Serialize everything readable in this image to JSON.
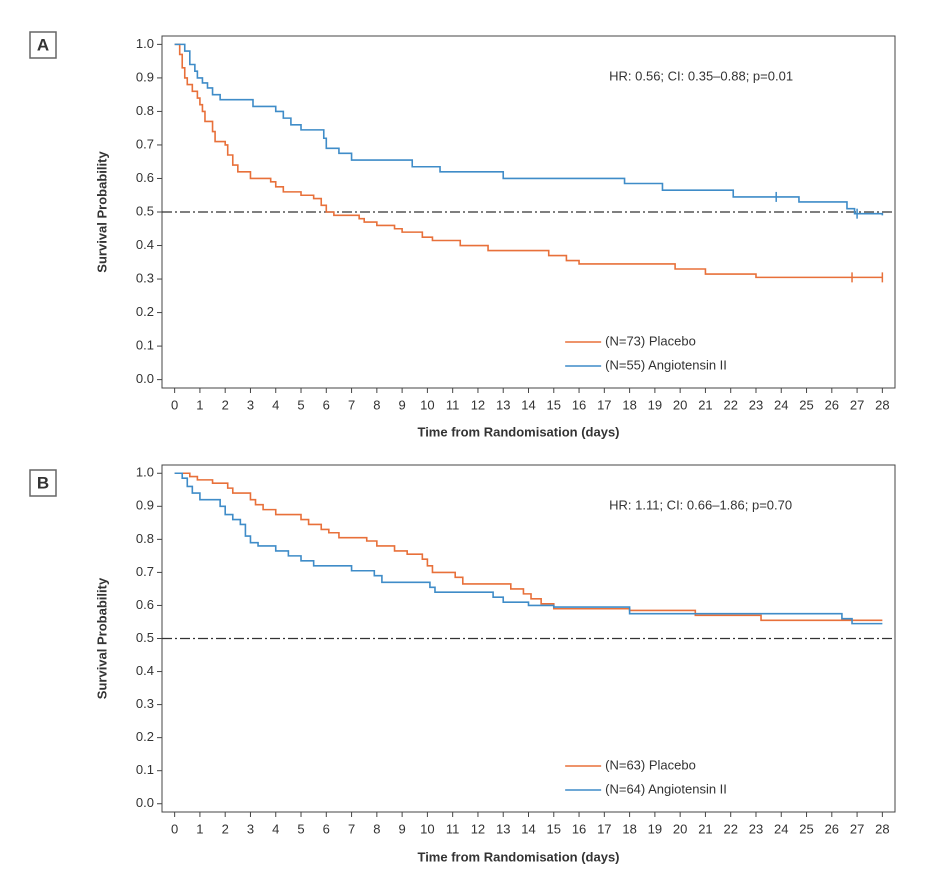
{
  "chart_data": [
    {
      "type": "step",
      "panel_label": "A",
      "annotation": "HR: 0.56; CI: 0.35–0.88; p=0.01",
      "x_label": "Time from Randomisation (days)",
      "y_label": "Survival Probability",
      "xlim": [
        -0.5,
        28.5
      ],
      "ylim": [
        -0.025,
        1.025
      ],
      "xticks": [
        0,
        1,
        2,
        3,
        4,
        5,
        6,
        7,
        8,
        9,
        10,
        11,
        12,
        13,
        14,
        15,
        16,
        17,
        18,
        19,
        20,
        21,
        22,
        23,
        24,
        25,
        26,
        27,
        28
      ],
      "yticks": [
        {
          "value": 0,
          "label": "0.0"
        },
        0.1,
        0.2,
        0.3,
        0.4,
        0.5,
        0.6,
        0.7,
        0.8,
        0.9,
        {
          "value": 1,
          "label": "1.0"
        }
      ],
      "reference_line": 0.5,
      "legend": "lower center",
      "series": [
        {
          "name": "(N=73) Placebo",
          "color": "#e8703a",
          "x": [
            0,
            0.2,
            0.3,
            0.4,
            0.5,
            0.7,
            0.9,
            1.0,
            1.1,
            1.2,
            1.5,
            1.6,
            2.0,
            2.1,
            2.3,
            2.5,
            3.0,
            3.8,
            4.0,
            4.3,
            5.0,
            5.5,
            5.8,
            6.0,
            6.3,
            7.3,
            7.5,
            8.0,
            8.7,
            9.0,
            9.8,
            10.2,
            11.3,
            12.4,
            14.8,
            15.5,
            16.0,
            19.8,
            21.0,
            23.0,
            28
          ],
          "values": [
            1.0,
            0.97,
            0.93,
            0.9,
            0.88,
            0.86,
            0.84,
            0.82,
            0.8,
            0.77,
            0.74,
            0.71,
            0.7,
            0.67,
            0.64,
            0.62,
            0.6,
            0.59,
            0.575,
            0.56,
            0.55,
            0.54,
            0.52,
            0.5,
            0.49,
            0.48,
            0.47,
            0.46,
            0.45,
            0.44,
            0.425,
            0.415,
            0.4,
            0.385,
            0.37,
            0.355,
            0.345,
            0.33,
            0.315,
            0.305,
            0.305
          ],
          "censored_x": [
            26.8,
            28
          ]
        },
        {
          "name": "(N=55) Angiotensin II",
          "color": "#3f8cc8",
          "x": [
            0,
            0.4,
            0.6,
            0.8,
            0.9,
            1.1,
            1.3,
            1.5,
            1.8,
            3.1,
            4.0,
            4.3,
            4.6,
            5.0,
            5.9,
            6.0,
            6.5,
            7.0,
            9.4,
            10.5,
            13.0,
            17.8,
            19.3,
            22.1,
            24.7,
            26.6,
            26.9,
            28
          ],
          "values": [
            1.0,
            0.98,
            0.94,
            0.92,
            0.9,
            0.885,
            0.87,
            0.85,
            0.835,
            0.815,
            0.8,
            0.78,
            0.76,
            0.745,
            0.72,
            0.69,
            0.675,
            0.655,
            0.635,
            0.62,
            0.6,
            0.585,
            0.565,
            0.545,
            0.53,
            0.51,
            0.495,
            0.49
          ],
          "censored_x": [
            23.8,
            27.0
          ]
        }
      ]
    },
    {
      "type": "step",
      "panel_label": "B",
      "annotation": "HR: 1.11; CI: 0.66–1.86; p=0.70",
      "x_label": "Time from Randomisation (days)",
      "y_label": "Survival Probability",
      "xlim": [
        -0.5,
        28.5
      ],
      "ylim": [
        -0.025,
        1.025
      ],
      "xticks": [
        0,
        1,
        2,
        3,
        4,
        5,
        6,
        7,
        8,
        9,
        10,
        11,
        12,
        13,
        14,
        15,
        16,
        17,
        18,
        19,
        20,
        21,
        22,
        23,
        24,
        25,
        26,
        27,
        28
      ],
      "yticks": [
        {
          "value": 0,
          "label": "0.0"
        },
        0.1,
        0.2,
        0.3,
        0.4,
        0.5,
        0.6,
        0.7,
        0.8,
        0.9,
        {
          "value": 1,
          "label": "1.0"
        }
      ],
      "reference_line": 0.5,
      "legend": "lower center",
      "series": [
        {
          "name": "(N=63) Placebo",
          "color": "#e8703a",
          "x": [
            0,
            0.6,
            0.9,
            1.5,
            2.1,
            2.3,
            3.0,
            3.2,
            3.5,
            4.0,
            5.0,
            5.3,
            5.8,
            6.1,
            6.5,
            7.6,
            8.0,
            8.7,
            9.2,
            9.8,
            10.0,
            10.2,
            11.1,
            11.4,
            13.3,
            13.8,
            14.1,
            14.5,
            15.0,
            18.0,
            20.6,
            23.2,
            28
          ],
          "values": [
            1.0,
            0.99,
            0.98,
            0.97,
            0.955,
            0.94,
            0.92,
            0.905,
            0.89,
            0.875,
            0.86,
            0.845,
            0.83,
            0.82,
            0.805,
            0.795,
            0.78,
            0.765,
            0.755,
            0.74,
            0.72,
            0.7,
            0.685,
            0.665,
            0.65,
            0.635,
            0.62,
            0.605,
            0.59,
            0.585,
            0.57,
            0.555,
            0.555
          ],
          "censored_x": []
        },
        {
          "name": "(N=64) Angiotensin II",
          "color": "#3f8cc8",
          "x": [
            0,
            0.3,
            0.5,
            0.7,
            1.0,
            1.8,
            2.0,
            2.3,
            2.6,
            2.8,
            3.0,
            3.3,
            4.0,
            4.5,
            5.0,
            5.5,
            7.0,
            7.9,
            8.2,
            10.1,
            10.3,
            12.6,
            13.0,
            14.0,
            15.0,
            18.0,
            20.5,
            26.4,
            26.8,
            28
          ],
          "values": [
            1.0,
            0.985,
            0.96,
            0.94,
            0.92,
            0.9,
            0.875,
            0.86,
            0.845,
            0.81,
            0.79,
            0.78,
            0.765,
            0.75,
            0.735,
            0.72,
            0.705,
            0.69,
            0.67,
            0.655,
            0.64,
            0.625,
            0.61,
            0.6,
            0.595,
            0.575,
            0.575,
            0.56,
            0.545,
            0.545
          ],
          "censored_x": []
        }
      ]
    }
  ]
}
